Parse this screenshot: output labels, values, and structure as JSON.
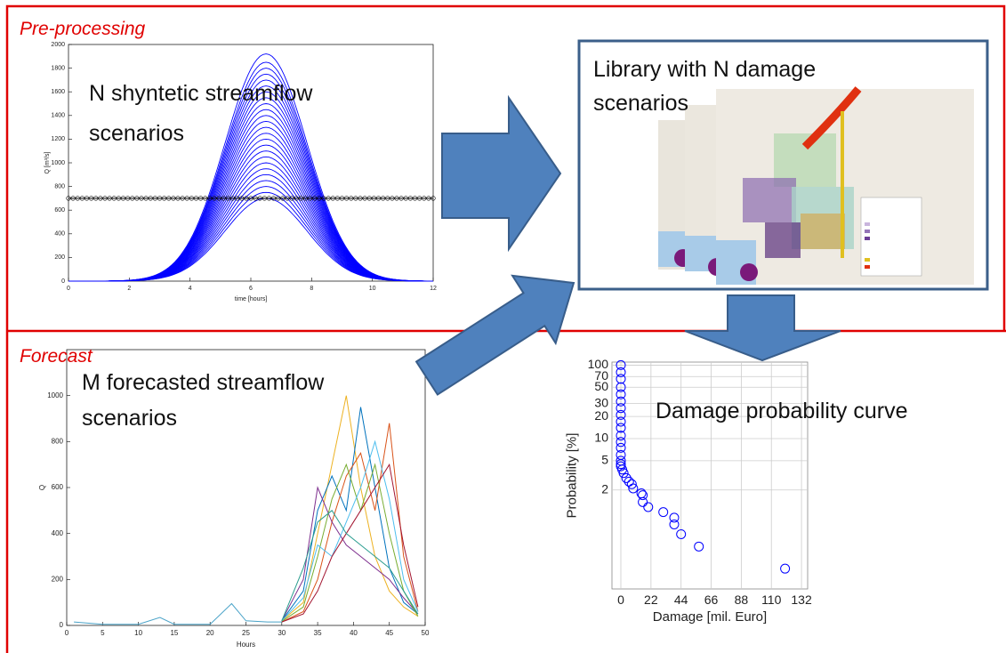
{
  "sections": {
    "pre_processing": "Pre-processing",
    "forecast": "Forecast"
  },
  "panels": {
    "synthetic": {
      "caption": [
        "N shyntetic streamflow",
        "scenarios"
      ],
      "chart": {
        "type": "line",
        "xlabel": "time [hours]",
        "ylabel": "Q [m³/s]",
        "xlim": [
          0,
          12
        ],
        "xticks": [
          0,
          2,
          4,
          6,
          8,
          10,
          12
        ],
        "ylim": [
          0,
          2000
        ],
        "yticks": [
          0,
          200,
          400,
          600,
          800,
          1000,
          1200,
          1400,
          1600,
          1800,
          2000
        ],
        "color": "#0000ff",
        "peak_hour": 6.5,
        "peaks": [
          700,
          750,
          800,
          850,
          900,
          950,
          1000,
          1050,
          1100,
          1150,
          1200,
          1250,
          1300,
          1350,
          1400,
          1450,
          1500,
          1550,
          1600,
          1650,
          1700,
          1750,
          1800,
          1850,
          1920
        ],
        "threshold": 700
      }
    },
    "library": {
      "caption": [
        "Library with N damage",
        "scenarios"
      ]
    },
    "forecast": {
      "caption": [
        "M forecasted streamflow",
        "scenarios"
      ],
      "chart": {
        "type": "line",
        "xlabel": "Hours",
        "ylabel": "Q",
        "xlim": [
          0,
          50
        ],
        "xticks": [
          0,
          5,
          10,
          15,
          20,
          25,
          30,
          35,
          40,
          45,
          50
        ],
        "ylim": [
          0,
          1200
        ],
        "yticks": [
          0,
          200,
          400,
          600,
          800,
          1000
        ],
        "observed": {
          "color": "#4aa3c8",
          "x": [
            1,
            5,
            10,
            13,
            15,
            20,
            23,
            25,
            28,
            30
          ],
          "values": [
            15,
            5,
            5,
            35,
            5,
            5,
            95,
            20,
            15,
            15
          ]
        },
        "forecast_x": [
          30,
          33,
          35,
          37,
          39,
          41,
          43,
          45,
          47,
          49
        ],
        "series": [
          {
            "color": "#edb120",
            "values": [
              20,
              100,
              400,
              700,
              1000,
              600,
              300,
              150,
              80,
              40
            ]
          },
          {
            "color": "#0072bd",
            "values": [
              20,
              150,
              500,
              650,
              500,
              950,
              600,
              250,
              100,
              50
            ]
          },
          {
            "color": "#d95319",
            "values": [
              15,
              60,
              200,
              450,
              650,
              750,
              500,
              880,
              300,
              60
            ]
          },
          {
            "color": "#7e2f8e",
            "values": [
              20,
              200,
              600,
              450,
              350,
              300,
              250,
              200,
              120,
              50
            ]
          },
          {
            "color": "#77ac30",
            "values": [
              18,
              80,
              300,
              550,
              700,
              500,
              700,
              400,
              150,
              40
            ]
          },
          {
            "color": "#4dbeee",
            "values": [
              20,
              120,
              350,
              300,
              450,
              600,
              800,
              550,
              200,
              60
            ]
          },
          {
            "color": "#a2142f",
            "values": [
              15,
              50,
              150,
              300,
              400,
              500,
              600,
              700,
              350,
              80
            ]
          },
          {
            "color": "#2a9d8f",
            "values": [
              20,
              250,
              450,
              500,
              400,
              350,
              300,
              250,
              150,
              50
            ]
          }
        ]
      }
    },
    "damage": {
      "caption": "Damage probability curve",
      "chart": {
        "type": "scatter",
        "log_y": true,
        "grid": true,
        "xlabel": "Damage [mil. Euro]",
        "ylabel": "Probability [%]",
        "xlim": [
          -6.5,
          136.5
        ],
        "xticks": [
          0,
          22,
          44,
          66,
          88,
          110,
          132
        ],
        "ylim": [
          0.09,
          110
        ],
        "yticks": [
          2,
          5,
          10,
          20,
          30,
          50,
          70,
          100
        ],
        "color": "#0000ff",
        "x": [
          0,
          0,
          0,
          0,
          0,
          0,
          0,
          0,
          0,
          0,
          0,
          0,
          0,
          0,
          0,
          0,
          0,
          1,
          2,
          4,
          6,
          8,
          9,
          15,
          16,
          16,
          20,
          31,
          39,
          39,
          44,
          57,
          120
        ],
        "y": [
          100,
          80,
          65,
          50,
          40,
          32,
          26,
          21,
          17,
          14,
          11,
          9,
          7.5,
          6,
          5,
          4.5,
          4.2,
          3.8,
          3.4,
          2.9,
          2.6,
          2.4,
          2.1,
          1.8,
          1.7,
          1.37,
          1.17,
          1.0,
          0.84,
          0.68,
          0.5,
          0.34,
          0.17
        ]
      }
    }
  }
}
